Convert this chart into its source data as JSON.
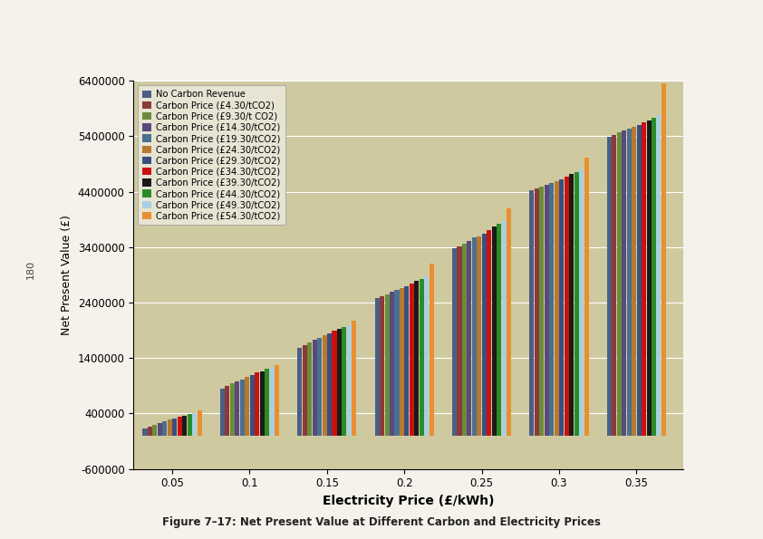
{
  "title": "Figure 7–17: Net Present Value at Different Carbon and Electricity Prices",
  "xlabel": "Electricity Price (£/kWh)",
  "ylabel": "Net Present Value (£)",
  "elec_prices": [
    0.05,
    0.1,
    0.15,
    0.2,
    0.25,
    0.3,
    0.35
  ],
  "ylim": [
    -600000,
    6400000
  ],
  "yticks": [
    -600000,
    400000,
    1400000,
    2400000,
    3400000,
    4400000,
    5400000,
    6400000
  ],
  "background_color": "#cfc9a0",
  "page_color": "#f5f2ec",
  "series": [
    {
      "label": "No Carbon Revenue",
      "color": "#4a5f82",
      "values": [
        130000,
        850000,
        1590000,
        2480000,
        3380000,
        4430000,
        5390000
      ]
    },
    {
      "label": "Carbon Price (£4.30/tCO2)",
      "color": "#8b3a3a",
      "values": [
        155000,
        890000,
        1640000,
        2510000,
        3420000,
        4460000,
        5430000
      ]
    },
    {
      "label": "Carbon Price (£9.30/t CO2)",
      "color": "#6b8c3a",
      "values": [
        195000,
        940000,
        1690000,
        2550000,
        3470000,
        4490000,
        5470000
      ]
    },
    {
      "label": "Carbon Price (£14.30/tCO2)",
      "color": "#5a4a7c",
      "values": [
        225000,
        980000,
        1730000,
        2590000,
        3520000,
        4530000,
        5510000
      ]
    },
    {
      "label": "Carbon Price (£19.30/tCO2)",
      "color": "#4a7090",
      "values": [
        255000,
        1020000,
        1770000,
        2630000,
        3570000,
        4565000,
        5545000
      ]
    },
    {
      "label": "Carbon Price (£24.30/tCO2)",
      "color": "#b87830",
      "values": [
        285000,
        1060000,
        1810000,
        2660000,
        3600000,
        4590000,
        5570000
      ]
    },
    {
      "label": "Carbon Price (£29.30/tCO2)",
      "color": "#3a4f80",
      "values": [
        315000,
        1100000,
        1850000,
        2700000,
        3640000,
        4620000,
        5600000
      ]
    },
    {
      "label": "Carbon Price (£34.30/tCO2)",
      "color": "#cc1010",
      "values": [
        340000,
        1140000,
        1890000,
        2750000,
        3710000,
        4680000,
        5650000
      ]
    },
    {
      "label": "Carbon Price (£39.30/tCO2)",
      "color": "#1a1a1a",
      "values": [
        365000,
        1165000,
        1920000,
        2790000,
        3770000,
        4715000,
        5690000
      ]
    },
    {
      "label": "Carbon Price (£44.30/tCO2)",
      "color": "#2a8c28",
      "values": [
        390000,
        1200000,
        1960000,
        2830000,
        3820000,
        4760000,
        5740000
      ]
    },
    {
      "label": "Carbon Price (£49.30/tCO2)",
      "color": "#a8d0e0",
      "values": [
        415000,
        1235000,
        2000000,
        2870000,
        3870000,
        4810000,
        5790000
      ]
    },
    {
      "label": "Carbon Price (£54.30/tCO2)",
      "color": "#e89030",
      "values": [
        450000,
        1275000,
        2080000,
        3110000,
        4100000,
        5020000,
        6350000
      ]
    }
  ]
}
